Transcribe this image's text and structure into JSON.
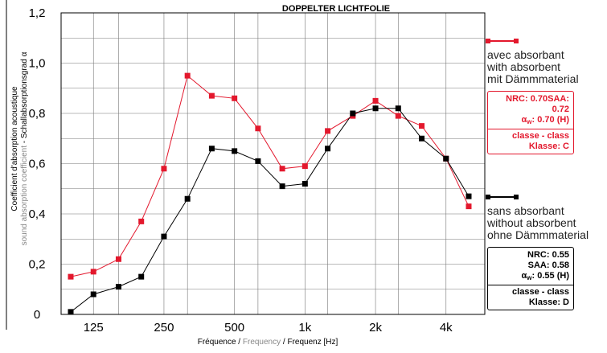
{
  "chart_data": {
    "type": "line",
    "title": "DOPPELTER LICHTFOLIE",
    "xlabel_parts": [
      "Fréquence / ",
      "Frequency",
      " / Frequenz  [Hz]"
    ],
    "ylabel_line1": "Coefficient d'absorption acoustique",
    "ylabel_line2_parts": [
      "sound absorption coefficient",
      " - Schallabsorptionsgrad α"
    ],
    "x_scale": "log",
    "x_ticks": [
      {
        "value": 125,
        "label": "125"
      },
      {
        "value": 250,
        "label": "250"
      },
      {
        "value": 500,
        "label": "500"
      },
      {
        "value": 1000,
        "label": "1k"
      },
      {
        "value": 2000,
        "label": "2k"
      },
      {
        "value": 4000,
        "label": "4k"
      }
    ],
    "y_ticks": [
      "0",
      "0,2",
      "0,4",
      "0,6",
      "0,8",
      "1,0",
      "1,2"
    ],
    "ylim": [
      0,
      1.2
    ],
    "grid": true,
    "x": [
      100,
      125,
      160,
      200,
      250,
      315,
      400,
      500,
      630,
      800,
      1000,
      1250,
      1600,
      2000,
      2500,
      3150,
      4000,
      5000
    ],
    "series": [
      {
        "name": "avec absorbant / with absorbent / mit Dämmmaterial",
        "color": "#e3182d",
        "values": [
          0.15,
          0.17,
          0.22,
          0.37,
          0.58,
          0.95,
          0.87,
          0.86,
          0.74,
          0.58,
          0.59,
          0.73,
          0.79,
          0.85,
          0.79,
          0.75,
          0.62,
          0.43
        ]
      },
      {
        "name": "sans absorbant / without absorbent / ohne Dämmmaterial",
        "color": "#000000",
        "values": [
          0.01,
          0.08,
          0.11,
          0.15,
          0.31,
          0.46,
          0.66,
          0.65,
          0.61,
          0.51,
          0.52,
          0.66,
          0.8,
          0.82,
          0.82,
          0.7,
          0.62,
          0.47
        ]
      }
    ]
  },
  "legend": {
    "with": {
      "lines": [
        "avec absorbant",
        "with absorbent",
        "mit Dämmmaterial"
      ],
      "nrc": "NRC: 0.70SAA:",
      "saa": "0.72",
      "alpha_sym": "α",
      "alpha_sub": "w",
      "alpha_val": ": 0.70 (H)",
      "class1": "classe - class",
      "class2": "Klasse: C"
    },
    "without": {
      "lines": [
        "sans absorbant",
        "without absorbent",
        "ohne Dämmmaterial"
      ],
      "nrc": "NRC: 0.55",
      "saa": "SAA: 0.58",
      "alpha_sym": "α",
      "alpha_sub": "w",
      "alpha_val": ": 0.55 (H)",
      "class1": "classe - class",
      "class2": "Klasse: D"
    }
  }
}
